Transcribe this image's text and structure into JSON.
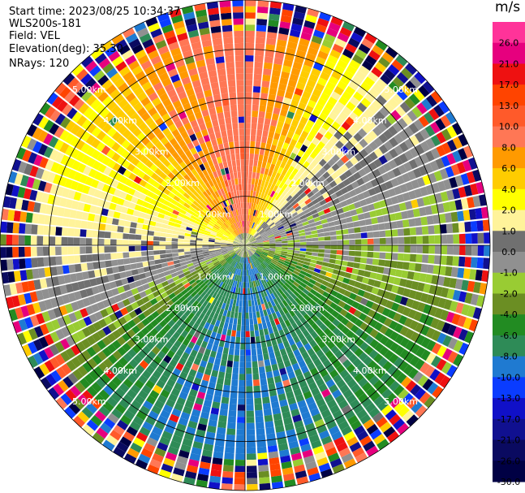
{
  "info": {
    "start_time": "Start time: 2023/08/25 10:34:37",
    "instrument": "WLS200s-181",
    "field": "Field: VEL",
    "elevation": "Elevation(deg): 35.30",
    "nrays": "NRays: 120"
  },
  "chart_data": {
    "type": "heatmap",
    "subtype": "polar-ppi",
    "title": "",
    "field": "VEL",
    "units": "m/s",
    "n_rays": 120,
    "range_rings_km": [
      1.0,
      2.0,
      3.0,
      4.0,
      5.0
    ],
    "ring_label_text": [
      "1.00km",
      "2.00km",
      "3.00km",
      "4.00km",
      "5.00km"
    ],
    "max_range_km": 5.0,
    "grid": true,
    "colorbar": {
      "position": "right",
      "unit_label": "m/s",
      "boundaries": [
        -30,
        -26,
        -21,
        -17,
        -13,
        -10,
        -8,
        -6,
        -4,
        -2,
        -1,
        1,
        2,
        4,
        6,
        8,
        10,
        13,
        17,
        21,
        26,
        30
      ],
      "tick_labels": [
        "26.0",
        "21.0",
        "17.0",
        "13.0",
        "10.0",
        "8.0",
        "6.0",
        "4.0",
        "2.0",
        "1.0",
        "0.0",
        "-1.0",
        "-2.0",
        "-4.0",
        "-6.0",
        "-8.0",
        "-10.0",
        "-13.0",
        "-17.0",
        "-21.0",
        "-26.0",
        "-30.0"
      ],
      "colors_top_to_bottom": [
        "#ff3399",
        "#e6007e",
        "#ee1111",
        "#ff4400",
        "#ff5a2a",
        "#ff7755",
        "#ff9a00",
        "#ffcc00",
        "#ffff00",
        "#fff39a",
        "#707070",
        "#909090",
        "#99cc33",
        "#6b8e23",
        "#228b22",
        "#2e8b57",
        "#1f7ad1",
        "#0a3cff",
        "#1010c8",
        "#101090",
        "#0a0a60",
        "#000044"
      ]
    },
    "approx_velocity_by_azimuth_deg": [
      {
        "azimuth": 0,
        "velocity": 12
      },
      {
        "azimuth": 45,
        "velocity": 2
      },
      {
        "azimuth": 70,
        "velocity": 0
      },
      {
        "azimuth": 100,
        "velocity": -2
      },
      {
        "azimuth": 135,
        "velocity": -6
      },
      {
        "azimuth": 180,
        "velocity": -9
      },
      {
        "azimuth": 225,
        "velocity": -6
      },
      {
        "azimuth": 250,
        "velocity": 0
      },
      {
        "azimuth": 270,
        "velocity": 2
      },
      {
        "azimuth": 300,
        "velocity": 5
      },
      {
        "azimuth": 330,
        "velocity": 9
      }
    ],
    "noise_beyond_range_km": 4.3
  }
}
